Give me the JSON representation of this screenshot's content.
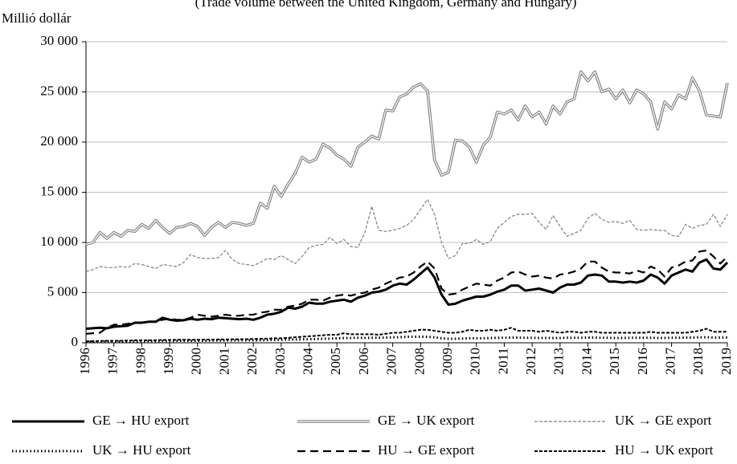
{
  "chart_data": {
    "type": "line",
    "subtitle": "(Trade volume between the United Kingdom, Germany and Hungary)",
    "y_label": "Millió dollár",
    "x": [
      1996,
      1996.25,
      1996.5,
      1996.75,
      1997,
      1997.25,
      1997.5,
      1997.75,
      1998,
      1998.25,
      1998.5,
      1998.75,
      1999,
      1999.25,
      1999.5,
      1999.75,
      2000,
      2000.25,
      2000.5,
      2000.75,
      2001,
      2001.25,
      2001.5,
      2001.75,
      2002,
      2002.25,
      2002.5,
      2002.75,
      2003,
      2003.25,
      2003.5,
      2003.75,
      2004,
      2004.25,
      2004.5,
      2004.75,
      2005,
      2005.25,
      2005.5,
      2005.75,
      2006,
      2006.25,
      2006.5,
      2006.75,
      2007,
      2007.25,
      2007.5,
      2007.75,
      2008,
      2008.25,
      2008.5,
      2008.75,
      2009,
      2009.25,
      2009.5,
      2009.75,
      2010,
      2010.25,
      2010.5,
      2010.75,
      2011,
      2011.25,
      2011.5,
      2011.75,
      2012,
      2012.25,
      2012.5,
      2012.75,
      2013,
      2013.25,
      2013.5,
      2013.75,
      2014,
      2014.25,
      2014.5,
      2014.75,
      2015,
      2015.25,
      2015.5,
      2015.75,
      2016,
      2016.25,
      2016.5,
      2016.75,
      2017,
      2017.25,
      2017.5,
      2017.75,
      2018,
      2018.25,
      2018.5,
      2018.75,
      2019
    ],
    "xlim": [
      1996,
      2019
    ],
    "xticks": [
      1996,
      1997,
      1998,
      1999,
      2000,
      2001,
      2002,
      2003,
      2004,
      2005,
      2006,
      2007,
      2008,
      2009,
      2010,
      2011,
      2012,
      2013,
      2014,
      2015,
      2016,
      2017,
      2018,
      2019
    ],
    "ylim": [
      0,
      30000
    ],
    "yticks": [
      0,
      {
        "value": 5000,
        "label": "5 000"
      },
      {
        "value": 10000,
        "label": "10 000"
      },
      {
        "value": 15000,
        "label": "15 000"
      },
      {
        "value": 20000,
        "label": "20 000"
      },
      {
        "value": 25000,
        "label": "25 000"
      },
      {
        "value": 30000,
        "label": "30 000"
      }
    ],
    "grid": true,
    "legend": "bottom",
    "series": [
      {
        "name": "GE → HU export",
        "color": "#000000",
        "style": "thick",
        "values": [
          1400,
          1450,
          1500,
          1450,
          1600,
          1650,
          1700,
          2000,
          2000,
          2100,
          2100,
          2500,
          2300,
          2200,
          2250,
          2400,
          2300,
          2400,
          2350,
          2500,
          2450,
          2400,
          2350,
          2400,
          2300,
          2500,
          2800,
          2900,
          3100,
          3500,
          3400,
          3600,
          4000,
          3900,
          3900,
          4100,
          4200,
          4300,
          4100,
          4500,
          4700,
          5000,
          5100,
          5300,
          5700,
          5900,
          5800,
          6300,
          6900,
          7500,
          6500,
          4800,
          3800,
          3900,
          4200,
          4400,
          4600,
          4600,
          4800,
          5100,
          5300,
          5700,
          5700,
          5200,
          5300,
          5400,
          5200,
          5000,
          5500,
          5800,
          5800,
          6000,
          6700,
          6800,
          6700,
          6100,
          6100,
          6000,
          6100,
          6000,
          6200,
          6800,
          6500,
          5900,
          6700,
          7000,
          7300,
          7100,
          8000,
          8300,
          7400,
          7300,
          8000
        ]
      },
      {
        "name": "GE → UK export",
        "color": "#808080",
        "style": "double",
        "values": [
          9800,
          10000,
          11000,
          10400,
          11000,
          10600,
          11200,
          11100,
          11800,
          11400,
          12200,
          11500,
          10900,
          11500,
          11600,
          11900,
          11600,
          10700,
          11500,
          12000,
          11500,
          12000,
          11900,
          11700,
          11900,
          13900,
          13400,
          15600,
          14600,
          15800,
          16900,
          18500,
          18000,
          18300,
          19800,
          19400,
          18700,
          18300,
          17600,
          19500,
          20000,
          20600,
          20300,
          23200,
          23100,
          24500,
          24800,
          25500,
          25800,
          25100,
          18200,
          16700,
          17000,
          20200,
          20100,
          19500,
          18000,
          19700,
          20500,
          23000,
          22800,
          23200,
          22200,
          23600,
          22500,
          23000,
          21800,
          23600,
          22800,
          24000,
          24300,
          27000,
          26100,
          27000,
          25000,
          25300,
          24300,
          25200,
          23900,
          25200,
          24800,
          24000,
          21300,
          24000,
          23300,
          24700,
          24300,
          26400,
          25100,
          22700,
          22600,
          22500,
          25900
        ]
      },
      {
        "name": "UK → GE export",
        "color": "#808080",
        "style": "fine-dash",
        "values": [
          7100,
          7300,
          7600,
          7500,
          7500,
          7600,
          7500,
          7900,
          7800,
          7600,
          7400,
          7800,
          7700,
          7600,
          8000,
          8800,
          8500,
          8400,
          8400,
          8500,
          9200,
          8300,
          7900,
          7800,
          7700,
          8000,
          8400,
          8300,
          8700,
          8300,
          7900,
          8600,
          9500,
          9700,
          9800,
          10500,
          9900,
          10300,
          9600,
          9500,
          11000,
          13600,
          11200,
          11100,
          11200,
          11400,
          11700,
          12300,
          13300,
          14300,
          12800,
          10000,
          8400,
          8700,
          9900,
          9900,
          10300,
          9800,
          10100,
          11400,
          12000,
          12600,
          12800,
          12800,
          12900,
          12000,
          11300,
          12700,
          11600,
          10600,
          10900,
          11200,
          12400,
          12900,
          12300,
          12000,
          12100,
          11900,
          12200,
          11300,
          11200,
          11300,
          11200,
          11200,
          10700,
          10600,
          11800,
          11400,
          11700,
          11800,
          12800,
          11600,
          12800
        ]
      },
      {
        "name": "UK → HU export",
        "color": "#000000",
        "style": "dotted",
        "values": [
          100,
          110,
          120,
          130,
          130,
          140,
          150,
          150,
          160,
          170,
          170,
          180,
          180,
          190,
          200,
          200,
          200,
          210,
          220,
          230,
          230,
          240,
          250,
          250,
          250,
          260,
          270,
          280,
          300,
          320,
          330,
          350,
          350,
          380,
          400,
          420,
          450,
          470,
          480,
          500,
          480,
          500,
          500,
          520,
          550,
          550,
          600,
          600,
          600,
          600,
          550,
          450,
          400,
          400,
          420,
          450,
          450,
          450,
          480,
          500,
          500,
          520,
          520,
          500,
          500,
          480,
          480,
          470,
          480,
          500,
          500,
          500,
          520,
          520,
          500,
          500,
          480,
          480,
          500,
          500,
          500,
          500,
          480,
          480,
          500,
          500,
          520,
          520,
          550,
          550,
          520,
          520,
          530
        ]
      },
      {
        "name": "HU → GE export",
        "color": "#000000",
        "style": "long-dash",
        "values": [
          900,
          950,
          1000,
          1500,
          1800,
          1800,
          1900,
          2000,
          2000,
          2100,
          2100,
          2300,
          2400,
          2300,
          2300,
          2500,
          2800,
          2700,
          2600,
          2700,
          2800,
          2700,
          2700,
          2800,
          2800,
          3000,
          3100,
          3300,
          3300,
          3600,
          3700,
          3900,
          4300,
          4300,
          4200,
          4500,
          4700,
          4800,
          4700,
          4900,
          5000,
          5300,
          5500,
          5900,
          6200,
          6500,
          6600,
          7000,
          7600,
          8100,
          7400,
          5400,
          4800,
          4900,
          5300,
          5600,
          5900,
          5800,
          5700,
          6200,
          6500,
          7000,
          7100,
          6800,
          6600,
          6700,
          6500,
          6400,
          6800,
          6900,
          7100,
          7400,
          8100,
          8100,
          7500,
          7100,
          7000,
          7000,
          6900,
          7200,
          7000,
          7600,
          7300,
          6600,
          7500,
          7700,
          8100,
          8200,
          9100,
          9200,
          8600,
          7900,
          8600
        ]
      },
      {
        "name": "HU → UK export",
        "color": "#000000",
        "style": "short-dash",
        "values": [
          150,
          150,
          180,
          200,
          200,
          200,
          220,
          250,
          250,
          250,
          260,
          280,
          280,
          300,
          300,
          300,
          300,
          320,
          320,
          330,
          330,
          350,
          350,
          360,
          380,
          400,
          420,
          450,
          450,
          500,
          550,
          600,
          650,
          700,
          750,
          800,
          800,
          950,
          850,
          850,
          850,
          850,
          800,
          900,
          1000,
          1000,
          1100,
          1200,
          1300,
          1300,
          1200,
          1100,
          1000,
          1000,
          1100,
          1300,
          1200,
          1200,
          1300,
          1200,
          1300,
          1500,
          1200,
          1200,
          1200,
          1100,
          1200,
          1100,
          1000,
          1100,
          1100,
          1000,
          1100,
          1100,
          1000,
          1000,
          1000,
          1000,
          1000,
          1000,
          1000,
          1100,
          1000,
          1000,
          1000,
          1000,
          1000,
          1100,
          1200,
          1400,
          1100,
          1100,
          1100
        ]
      }
    ]
  }
}
